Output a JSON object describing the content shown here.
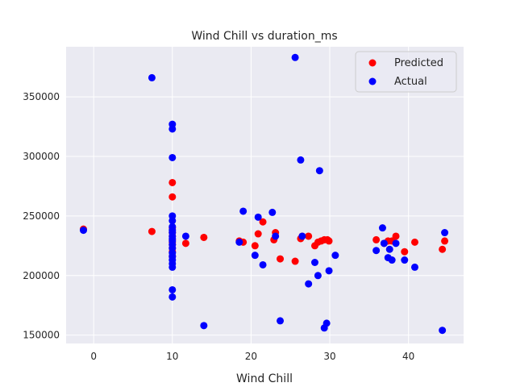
{
  "chart_data": {
    "type": "scatter",
    "title": "Wind Chill vs duration_ms",
    "xlabel": "Wind Chill",
    "ylabel": "",
    "xlim": [
      -3.5,
      47
    ],
    "ylim": [
      143000,
      392000
    ],
    "xticks": [
      0,
      10,
      20,
      30,
      40
    ],
    "yticks": [
      150000,
      200000,
      250000,
      300000,
      350000
    ],
    "grid": true,
    "legend_position": "top-right",
    "series": [
      {
        "name": "Predicted",
        "color": "#ff0000",
        "points": [
          [
            -1.3,
            239000
          ],
          [
            7.4,
            237000
          ],
          [
            10,
            278000
          ],
          [
            10,
            266000
          ],
          [
            10,
            240000
          ],
          [
            10,
            236000
          ],
          [
            10,
            233000
          ],
          [
            10,
            230000
          ],
          [
            10,
            228000
          ],
          [
            10,
            226000
          ],
          [
            10,
            223000
          ],
          [
            10,
            220000
          ],
          [
            10,
            216000
          ],
          [
            11.7,
            227000
          ],
          [
            14,
            232000
          ],
          [
            18.5,
            229000
          ],
          [
            19,
            228000
          ],
          [
            20.5,
            225000
          ],
          [
            20.9,
            235000
          ],
          [
            21.5,
            245000
          ],
          [
            22.9,
            230000
          ],
          [
            23.1,
            236000
          ],
          [
            23.7,
            214000
          ],
          [
            25.6,
            212000
          ],
          [
            26.3,
            231000
          ],
          [
            26.5,
            233000
          ],
          [
            27.3,
            233000
          ],
          [
            28.1,
            225000
          ],
          [
            28.5,
            228000
          ],
          [
            28.9,
            229000
          ],
          [
            29.3,
            230000
          ],
          [
            29.7,
            230000
          ],
          [
            29.9,
            229000
          ],
          [
            35.9,
            230000
          ],
          [
            36.9,
            227000
          ],
          [
            37.4,
            229000
          ],
          [
            37.9,
            229000
          ],
          [
            38.4,
            233000
          ],
          [
            39.5,
            220000
          ],
          [
            40.8,
            228000
          ],
          [
            44.3,
            222000
          ],
          [
            44.6,
            229000
          ]
        ]
      },
      {
        "name": "Actual",
        "color": "#0000ff",
        "points": [
          [
            -1.3,
            238000
          ],
          [
            7.4,
            366000
          ],
          [
            10,
            327000
          ],
          [
            10,
            323000
          ],
          [
            10,
            299000
          ],
          [
            10,
            250000
          ],
          [
            10,
            246000
          ],
          [
            10,
            241000
          ],
          [
            10,
            238000
          ],
          [
            10,
            236000
          ],
          [
            10,
            233000
          ],
          [
            10,
            231000
          ],
          [
            10,
            229000
          ],
          [
            10,
            226000
          ],
          [
            10,
            223000
          ],
          [
            10,
            219000
          ],
          [
            10,
            216000
          ],
          [
            10,
            213000
          ],
          [
            10,
            210000
          ],
          [
            10,
            207000
          ],
          [
            10,
            188000
          ],
          [
            10,
            182000
          ],
          [
            11.7,
            233000
          ],
          [
            14,
            158000
          ],
          [
            18.5,
            228000
          ],
          [
            19,
            254000
          ],
          [
            20.5,
            217000
          ],
          [
            20.9,
            249000
          ],
          [
            21.5,
            209000
          ],
          [
            22.7,
            253000
          ],
          [
            23.1,
            233000
          ],
          [
            23.7,
            162000
          ],
          [
            25.6,
            383000
          ],
          [
            26.3,
            297000
          ],
          [
            26.5,
            233000
          ],
          [
            27.3,
            193000
          ],
          [
            28.1,
            211000
          ],
          [
            28.5,
            200000
          ],
          [
            28.7,
            288000
          ],
          [
            29.3,
            156000
          ],
          [
            29.6,
            160000
          ],
          [
            29.9,
            204000
          ],
          [
            30.7,
            217000
          ],
          [
            35.9,
            221000
          ],
          [
            36.7,
            240000
          ],
          [
            36.9,
            227000
          ],
          [
            37.4,
            215000
          ],
          [
            37.6,
            222000
          ],
          [
            37.9,
            213000
          ],
          [
            38.4,
            227000
          ],
          [
            39.5,
            213000
          ],
          [
            40.8,
            207000
          ],
          [
            44.3,
            154000
          ],
          [
            44.6,
            236000
          ]
        ]
      }
    ]
  }
}
